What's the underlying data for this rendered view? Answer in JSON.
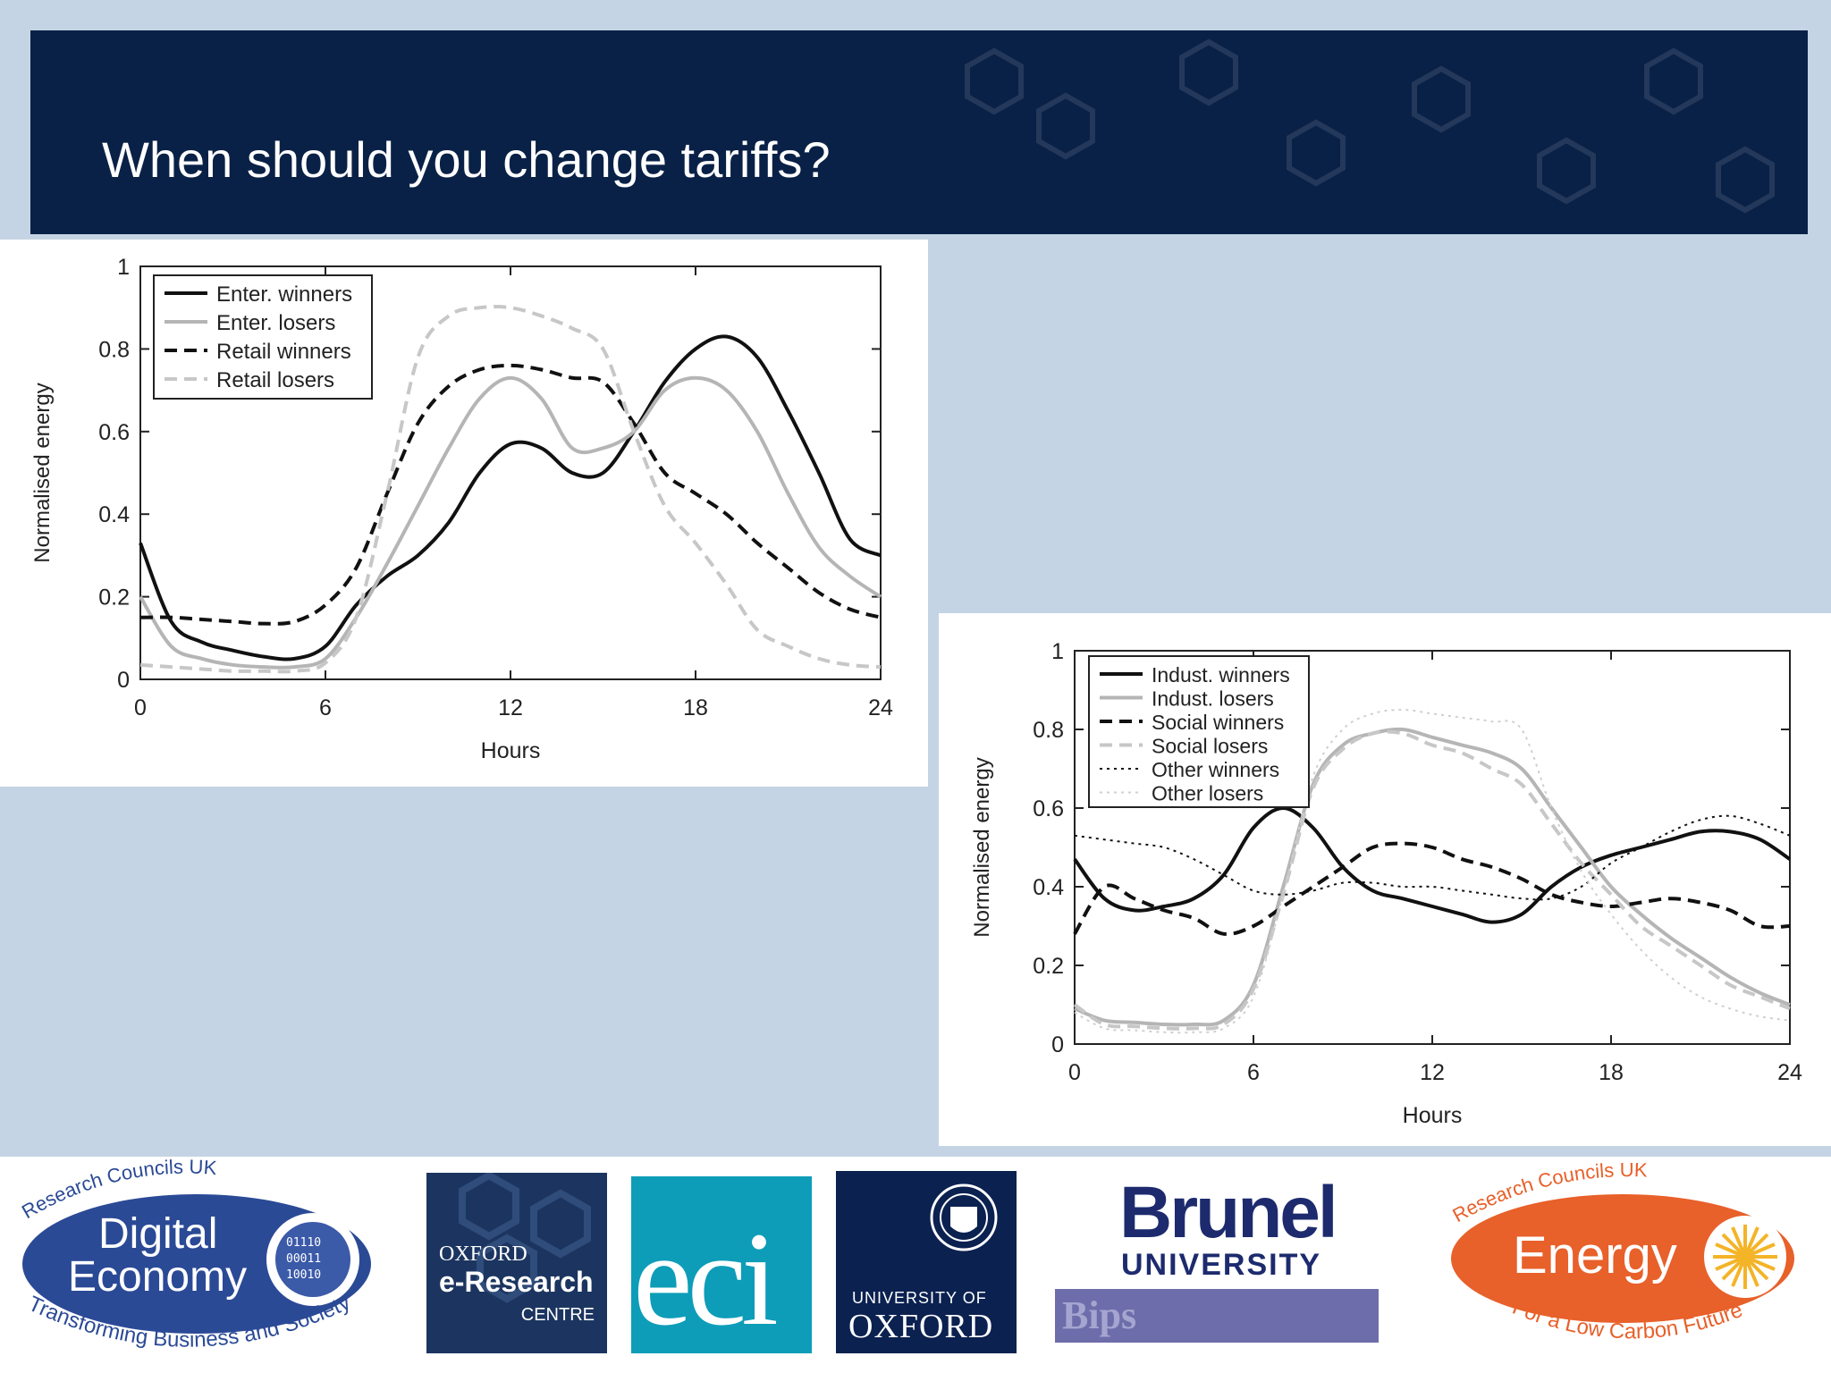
{
  "slide": {
    "title": "When should you change tariffs?"
  },
  "chart_data": [
    {
      "type": "line",
      "title": "",
      "xlabel": "Hours",
      "ylabel": "Normalised energy",
      "xlim": [
        0,
        24
      ],
      "ylim": [
        0,
        1
      ],
      "xticks": [
        "0",
        "6",
        "12",
        "18",
        "24"
      ],
      "yticks": [
        "0",
        "0.2",
        "0.4",
        "0.6",
        "0.8",
        "1"
      ],
      "legend_position": "top-left",
      "series": [
        {
          "name": "Enter. winners",
          "color": "#111111",
          "dash": "solid",
          "x": [
            0,
            1,
            2,
            3,
            4,
            5,
            6,
            7,
            8,
            9,
            10,
            11,
            12,
            13,
            14,
            15,
            16,
            17,
            18,
            19,
            20,
            21,
            22,
            23,
            24
          ],
          "y": [
            0.33,
            0.14,
            0.09,
            0.07,
            0.055,
            0.05,
            0.08,
            0.18,
            0.25,
            0.3,
            0.38,
            0.5,
            0.57,
            0.56,
            0.5,
            0.5,
            0.6,
            0.72,
            0.8,
            0.83,
            0.78,
            0.65,
            0.5,
            0.34,
            0.3
          ]
        },
        {
          "name": "Enter. losers",
          "color": "#b5b5b5",
          "dash": "solid",
          "x": [
            0,
            1,
            2,
            3,
            4,
            5,
            6,
            7,
            8,
            9,
            10,
            11,
            12,
            13,
            14,
            15,
            16,
            17,
            18,
            19,
            20,
            21,
            22,
            23,
            24
          ],
          "y": [
            0.2,
            0.08,
            0.05,
            0.035,
            0.03,
            0.03,
            0.05,
            0.15,
            0.28,
            0.42,
            0.56,
            0.68,
            0.73,
            0.68,
            0.56,
            0.56,
            0.6,
            0.7,
            0.73,
            0.7,
            0.6,
            0.45,
            0.32,
            0.25,
            0.2
          ]
        },
        {
          "name": "Retail winners",
          "color": "#111111",
          "dash": "dashed",
          "x": [
            0,
            1,
            2,
            3,
            4,
            5,
            6,
            7,
            8,
            9,
            10,
            11,
            12,
            13,
            14,
            15,
            16,
            17,
            18,
            19,
            20,
            21,
            22,
            23,
            24
          ],
          "y": [
            0.15,
            0.15,
            0.145,
            0.14,
            0.135,
            0.14,
            0.18,
            0.27,
            0.45,
            0.62,
            0.71,
            0.75,
            0.76,
            0.75,
            0.73,
            0.72,
            0.62,
            0.5,
            0.45,
            0.4,
            0.33,
            0.27,
            0.21,
            0.17,
            0.15
          ]
        },
        {
          "name": "Retail losers",
          "color": "#c7c7c7",
          "dash": "dashed",
          "x": [
            0,
            1,
            2,
            3,
            4,
            5,
            6,
            7,
            8,
            9,
            10,
            11,
            12,
            13,
            14,
            15,
            16,
            17,
            18,
            19,
            20,
            21,
            22,
            23,
            24
          ],
          "y": [
            0.035,
            0.03,
            0.025,
            0.02,
            0.02,
            0.02,
            0.04,
            0.15,
            0.45,
            0.78,
            0.88,
            0.9,
            0.9,
            0.88,
            0.85,
            0.8,
            0.6,
            0.42,
            0.33,
            0.23,
            0.12,
            0.08,
            0.05,
            0.035,
            0.03
          ]
        }
      ]
    },
    {
      "type": "line",
      "title": "",
      "xlabel": "Hours",
      "ylabel": "Normalised energy",
      "xlim": [
        0,
        24
      ],
      "ylim": [
        0,
        1
      ],
      "xticks": [
        "0",
        "6",
        "12",
        "18",
        "24"
      ],
      "yticks": [
        "0",
        "0.2",
        "0.4",
        "0.6",
        "0.8",
        "1"
      ],
      "legend_position": "top-left",
      "series": [
        {
          "name": "Indust. winners",
          "color": "#111111",
          "dash": "solid",
          "x": [
            0,
            1,
            2,
            3,
            4,
            5,
            6,
            7,
            8,
            9,
            10,
            11,
            12,
            13,
            14,
            15,
            16,
            17,
            18,
            19,
            20,
            21,
            22,
            23,
            24
          ],
          "y": [
            0.47,
            0.37,
            0.34,
            0.35,
            0.37,
            0.43,
            0.55,
            0.6,
            0.55,
            0.45,
            0.39,
            0.37,
            0.35,
            0.33,
            0.31,
            0.33,
            0.4,
            0.45,
            0.48,
            0.5,
            0.52,
            0.54,
            0.54,
            0.52,
            0.47
          ]
        },
        {
          "name": "Indust. losers",
          "color": "#b5b5b5",
          "dash": "solid",
          "x": [
            0,
            1,
            2,
            3,
            4,
            5,
            6,
            7,
            8,
            9,
            10,
            11,
            12,
            13,
            14,
            15,
            16,
            17,
            18,
            19,
            20,
            21,
            22,
            23,
            24
          ],
          "y": [
            0.09,
            0.06,
            0.055,
            0.05,
            0.05,
            0.06,
            0.15,
            0.4,
            0.66,
            0.76,
            0.79,
            0.8,
            0.78,
            0.76,
            0.74,
            0.7,
            0.6,
            0.5,
            0.4,
            0.33,
            0.27,
            0.22,
            0.17,
            0.13,
            0.1
          ]
        },
        {
          "name": "Social winners",
          "color": "#111111",
          "dash": "dashed",
          "x": [
            0,
            1,
            2,
            3,
            4,
            5,
            6,
            7,
            8,
            9,
            10,
            11,
            12,
            13,
            14,
            15,
            16,
            17,
            18,
            19,
            20,
            21,
            22,
            23,
            24
          ],
          "y": [
            0.28,
            0.4,
            0.37,
            0.34,
            0.32,
            0.28,
            0.3,
            0.35,
            0.4,
            0.45,
            0.5,
            0.51,
            0.5,
            0.47,
            0.45,
            0.42,
            0.38,
            0.36,
            0.35,
            0.36,
            0.37,
            0.36,
            0.34,
            0.3,
            0.3
          ]
        },
        {
          "name": "Social losers",
          "color": "#c7c7c7",
          "dash": "dashed",
          "x": [
            0,
            1,
            2,
            3,
            4,
            5,
            6,
            7,
            8,
            9,
            10,
            11,
            12,
            13,
            14,
            15,
            16,
            17,
            18,
            19,
            20,
            21,
            22,
            23,
            24
          ],
          "y": [
            0.1,
            0.05,
            0.045,
            0.04,
            0.04,
            0.05,
            0.14,
            0.38,
            0.65,
            0.75,
            0.79,
            0.79,
            0.76,
            0.74,
            0.7,
            0.66,
            0.56,
            0.46,
            0.38,
            0.3,
            0.25,
            0.2,
            0.15,
            0.12,
            0.09
          ]
        },
        {
          "name": "Other winners",
          "color": "#111111",
          "dash": "dotted",
          "x": [
            0,
            1,
            2,
            3,
            4,
            5,
            6,
            7,
            8,
            9,
            10,
            11,
            12,
            13,
            14,
            15,
            16,
            17,
            18,
            19,
            20,
            21,
            22,
            23,
            24
          ],
          "y": [
            0.53,
            0.52,
            0.51,
            0.5,
            0.47,
            0.43,
            0.39,
            0.38,
            0.39,
            0.41,
            0.41,
            0.4,
            0.4,
            0.39,
            0.38,
            0.37,
            0.37,
            0.4,
            0.46,
            0.5,
            0.54,
            0.57,
            0.58,
            0.56,
            0.53
          ]
        },
        {
          "name": "Other losers",
          "color": "#d0d0d0",
          "dash": "dotted",
          "x": [
            0,
            1,
            2,
            3,
            4,
            5,
            6,
            7,
            8,
            9,
            10,
            11,
            12,
            13,
            14,
            15,
            16,
            17,
            18,
            19,
            20,
            21,
            22,
            23,
            24
          ],
          "y": [
            0.08,
            0.04,
            0.035,
            0.03,
            0.03,
            0.04,
            0.12,
            0.38,
            0.68,
            0.8,
            0.84,
            0.85,
            0.84,
            0.83,
            0.82,
            0.8,
            0.6,
            0.44,
            0.33,
            0.24,
            0.17,
            0.12,
            0.09,
            0.07,
            0.06
          ]
        }
      ]
    }
  ],
  "logos": {
    "digital_economy": {
      "top_text": "Research Councils UK",
      "main_line1": "Digital",
      "main_line2": "Economy",
      "bottom_text": "Transforming Business and Society"
    },
    "oerc": {
      "line1": "OXFORD",
      "line2": "e-Research",
      "line3": "CENTRE"
    },
    "eci": {
      "text": "eci"
    },
    "oxford": {
      "line1": "UNIVERSITY OF",
      "line2": "OXFORD"
    },
    "brunel": {
      "line1": "Brunel",
      "line2": "UNIVERSITY",
      "banner": "Bips"
    },
    "energy": {
      "top_text": "Research Councils UK",
      "main": "Energy",
      "bottom_text": "For a Low Carbon Future"
    }
  }
}
